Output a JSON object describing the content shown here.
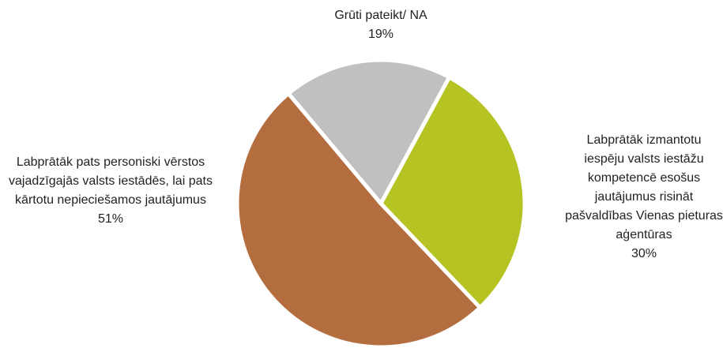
{
  "chart_data": {
    "type": "pie",
    "categories": [
      "Grūti pateikt/ NA",
      "Labprātāk izmantotu iespēju valsts iestāžu kompetencē esošus jautājumus risināt pašvaldības Vienas pieturas aģentūras",
      "Labprātāk pats personiski vērstos vajadzīgajās valsts iestādēs, lai pats kārtotu nepieciešamos jautājumus"
    ],
    "values": [
      19,
      30,
      51
    ],
    "value_labels": [
      "19%",
      "30%",
      "51%"
    ],
    "colors": [
      "#c0c0c0",
      "#b5c423",
      "#b36d3e"
    ]
  }
}
